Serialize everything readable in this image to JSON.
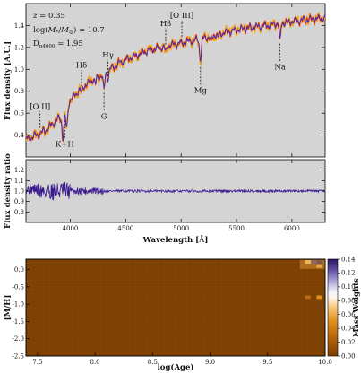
{
  "chart_data": [
    {
      "type": "line",
      "panel": "spectrum",
      "xlabel": "",
      "ylabel": "Flux density [A.U.]",
      "xlim": [
        3600,
        6300
      ],
      "ylim": [
        0.2,
        1.6
      ],
      "yticks": [
        0.4,
        0.6,
        0.8,
        1.0,
        1.2,
        1.4
      ],
      "background": "#d4d4d4",
      "annotations": [
        "z = 0.35",
        "log(M* / M⊙) = 10.7",
        "Dn4000 = 1.95"
      ],
      "annotation_parts": {
        "z": {
          "symbol": "z",
          "value": " = 0.35"
        },
        "mass": {
          "prefix": "log(",
          "m": "M",
          "sub1": "*",
          "slash": "/",
          "m2": "M",
          "sub2": "⊙",
          "value": ") = 10.7"
        },
        "dn": {
          "d": "D",
          "sub": "n4000",
          "value": " = 1.95"
        }
      },
      "spectral_lines": [
        {
          "label": "[O II]",
          "x": 3727,
          "position": "above"
        },
        {
          "label": "K+H",
          "x": 3950,
          "position": "below"
        },
        {
          "label": "Hδ",
          "x": 4101,
          "position": "above"
        },
        {
          "label": "G",
          "x": 4304,
          "position": "below"
        },
        {
          "label": "Hγ",
          "x": 4340,
          "position": "above"
        },
        {
          "label": "Hβ",
          "x": 4861,
          "position": "above"
        },
        {
          "label": "[O III]",
          "x": 5007,
          "position": "above"
        },
        {
          "label": "Mg",
          "x": 5175,
          "position": "below"
        },
        {
          "label": "Na",
          "x": 5893,
          "position": "below"
        }
      ],
      "series": [
        {
          "role": "observed",
          "color": "#d8251e"
        },
        {
          "role": "model",
          "color": "#2b2ad0"
        },
        {
          "role": "uncertainty",
          "color": "#f2a21f"
        }
      ],
      "continuum_knots": [
        [
          3600,
          0.36
        ],
        [
          3700,
          0.4
        ],
        [
          3800,
          0.46
        ],
        [
          3900,
          0.56
        ],
        [
          3930,
          0.52
        ],
        [
          3960,
          0.6
        ],
        [
          4000,
          0.72
        ],
        [
          4100,
          0.83
        ],
        [
          4200,
          0.9
        ],
        [
          4300,
          0.95
        ],
        [
          4400,
          1.03
        ],
        [
          4500,
          1.09
        ],
        [
          4700,
          1.17
        ],
        [
          4900,
          1.22
        ],
        [
          5100,
          1.26
        ],
        [
          5300,
          1.31
        ],
        [
          5500,
          1.36
        ],
        [
          5700,
          1.39
        ],
        [
          5900,
          1.42
        ],
        [
          6100,
          1.45
        ],
        [
          6300,
          1.47
        ]
      ]
    },
    {
      "type": "line",
      "panel": "ratio",
      "xlabel": "Wavelength [Å]",
      "ylabel": "Flux density ratio",
      "xlim": [
        3600,
        6300
      ],
      "ylim": [
        0.7,
        1.3
      ],
      "xticks": [
        4000,
        4500,
        5000,
        5500,
        6000
      ],
      "yticks": [
        0.8,
        0.9,
        1.0,
        1.1,
        1.2
      ],
      "color": "#3b1a8f",
      "xlabel_parts": {
        "text": "Wavelength [",
        "unit": "Å",
        "close": "]"
      }
    },
    {
      "type": "heatmap",
      "panel": "mass-weights",
      "xlabel": "log(Age)",
      "ylabel": "[M/H]",
      "xlim": [
        7.4,
        10.0
      ],
      "ylim": [
        -2.5,
        0.3
      ],
      "xticks": [
        7.5,
        8.0,
        8.5,
        9.0,
        9.5,
        10.0
      ],
      "yticks": [
        0.0,
        -0.5,
        -1.0,
        -1.5,
        -2.0,
        -2.5
      ],
      "colorbar": {
        "label": "Mass Weights",
        "range": [
          0.0,
          0.14
        ],
        "ticks": [
          0.0,
          0.02,
          0.04,
          0.06,
          0.08,
          0.1,
          0.12,
          0.14
        ],
        "colors": [
          "#7a3f00",
          "#a55a05",
          "#d5820f",
          "#f2b04a",
          "#fbe1ad",
          "#ffffff",
          "#c0bfe5",
          "#7a6ab8",
          "#2e1a6e"
        ]
      },
      "cells": [
        {
          "age": 9.9,
          "mh": 0.22,
          "weight": 0.13
        },
        {
          "age": 9.95,
          "mh": 0.22,
          "weight": 0.14
        },
        {
          "age": 9.85,
          "mh": 0.22,
          "weight": 0.07
        },
        {
          "age": 9.95,
          "mh": 0.1,
          "weight": 0.06
        },
        {
          "age": 9.95,
          "mh": -0.8,
          "weight": 0.05
        },
        {
          "age": 9.85,
          "mh": -0.8,
          "weight": 0.03
        }
      ]
    }
  ]
}
